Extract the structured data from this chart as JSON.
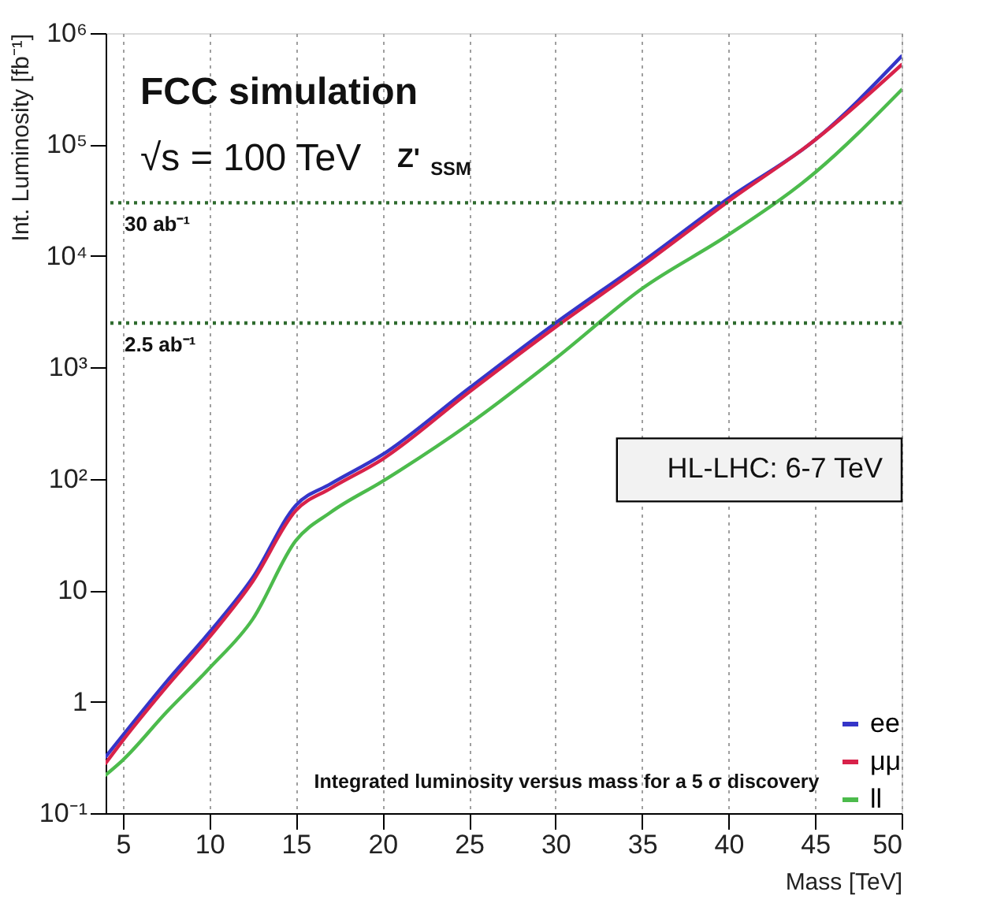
{
  "chart_data": {
    "type": "line",
    "xlabel": "Mass [TeV]",
    "ylabel": "Int. Luminosity [fb⁻¹]",
    "x": [
      4,
      5,
      7.5,
      10,
      12.5,
      15,
      17,
      20,
      25,
      30,
      35,
      40,
      45,
      50
    ],
    "series": [
      {
        "name": "ee",
        "color": "#3535c8",
        "values": [
          0.32,
          0.5,
          1.5,
          4.2,
          13,
          58,
          90,
          165,
          650,
          2500,
          8800,
          33000,
          110000,
          620000
        ]
      },
      {
        "name": "μμ",
        "color": "#d8224a",
        "values": [
          0.28,
          0.45,
          1.35,
          3.8,
          12,
          52,
          82,
          150,
          600,
          2300,
          8200,
          31000,
          110000,
          520000
        ]
      },
      {
        "name": "ll",
        "color": "#4cbb4c",
        "values": [
          0.22,
          0.3,
          0.8,
          2.0,
          5.5,
          28,
          50,
          95,
          310,
          1200,
          5100,
          15500,
          56000,
          310000
        ]
      }
    ],
    "xlim": [
      4,
      50
    ],
    "xticks": [
      5,
      10,
      15,
      20,
      25,
      30,
      35,
      40,
      45,
      50
    ],
    "ylim": [
      0.1,
      1000000
    ],
    "yticks": [
      {
        "value": 0.1,
        "label": "10⁻¹"
      },
      1,
      10,
      {
        "value": 100,
        "label": "10²"
      },
      {
        "value": 1000,
        "label": "10³"
      },
      {
        "value": 10000,
        "label": "10⁴"
      },
      {
        "value": 100000,
        "label": "10⁵"
      },
      {
        "value": 1000000,
        "label": "10⁶"
      }
    ],
    "log": "y",
    "grid": "x",
    "legend": "bottom right",
    "ref_lines": [
      {
        "axis": "y",
        "value": 30000,
        "label": "30 ab⁻¹",
        "color": "#2f6b2f",
        "line_style": "dotted"
      },
      {
        "axis": "y",
        "value": 2500,
        "label": "2.5 ab⁻¹",
        "color": "#2f6b2f",
        "line_style": "dotted"
      }
    ],
    "annotations": [
      "FCC simulation",
      "√s = 100 TeV",
      "Z'$_{SSM}$",
      "Integrated luminosity versus mass for a 5 σ discovery",
      "HL-LHC: 6-7 TeV"
    ]
  }
}
